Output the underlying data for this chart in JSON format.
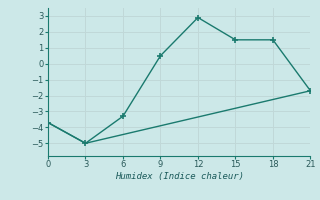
{
  "xlabel": "Humidex (Indice chaleur)",
  "line1_x": [
    0,
    3,
    6,
    9,
    12,
    15,
    18,
    21
  ],
  "line1_y": [
    -3.7,
    -5.0,
    -3.3,
    0.5,
    2.9,
    1.5,
    1.5,
    -1.7
  ],
  "line2_x": [
    0,
    3,
    21
  ],
  "line2_y": [
    -3.7,
    -5.0,
    -1.7
  ],
  "line_color": "#1a7a6e",
  "bg_color": "#cce8e8",
  "grid_color": "#b0d4d4",
  "xlim": [
    0,
    21
  ],
  "ylim": [
    -5.8,
    3.5
  ],
  "xticks": [
    0,
    3,
    6,
    9,
    12,
    15,
    18,
    21
  ],
  "yticks": [
    -5,
    -4,
    -3,
    -2,
    -1,
    0,
    1,
    2,
    3
  ]
}
